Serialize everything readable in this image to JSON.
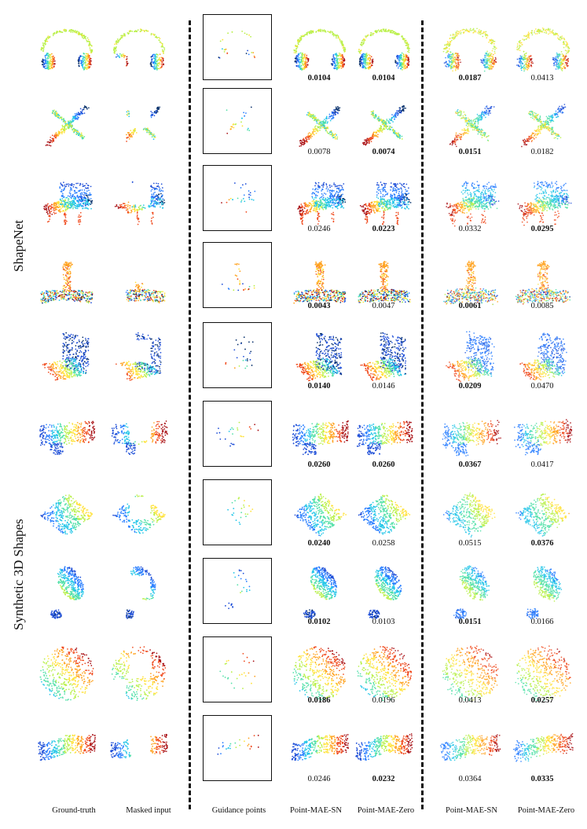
{
  "row_groups": [
    {
      "label": "ShapeNet"
    },
    {
      "label": "Synthetic 3D Shapes"
    }
  ],
  "columns": [
    {
      "label": "Ground-truth"
    },
    {
      "label": "Masked input"
    },
    {
      "label": "Guidance points"
    },
    {
      "label": "Point-MAE-SN"
    },
    {
      "label": "Point-MAE-Zero"
    },
    {
      "label": "Point-MAE-SN"
    },
    {
      "label": "Point-MAE-Zero"
    }
  ],
  "rows": [
    {
      "object": "headphones",
      "group": "ShapeNet",
      "scores": [
        {
          "v": "0.0104",
          "b": true
        },
        {
          "v": "0.0104",
          "b": true
        },
        {
          "v": "0.0187",
          "b": true
        },
        {
          "v": "0.0413",
          "b": false
        }
      ]
    },
    {
      "object": "airplane",
      "group": "ShapeNet",
      "scores": [
        {
          "v": "0.0078",
          "b": false
        },
        {
          "v": "0.0074",
          "b": true
        },
        {
          "v": "0.0151",
          "b": true
        },
        {
          "v": "0.0182",
          "b": false
        }
      ]
    },
    {
      "object": "bench",
      "group": "ShapeNet",
      "scores": [
        {
          "v": "0.0246",
          "b": false
        },
        {
          "v": "0.0223",
          "b": true
        },
        {
          "v": "0.0332",
          "b": false
        },
        {
          "v": "0.0295",
          "b": true
        }
      ]
    },
    {
      "object": "pot-plant",
      "group": "ShapeNet",
      "scores": [
        {
          "v": "0.0043",
          "b": true
        },
        {
          "v": "0.0047",
          "b": false
        },
        {
          "v": "0.0061",
          "b": true
        },
        {
          "v": "0.0085",
          "b": false
        }
      ]
    },
    {
      "object": "folded-planes",
      "group": "ShapeNet",
      "scores": [
        {
          "v": "0.0140",
          "b": true
        },
        {
          "v": "0.0146",
          "b": false
        },
        {
          "v": "0.0209",
          "b": true
        },
        {
          "v": "0.0470",
          "b": false
        }
      ]
    },
    {
      "object": "blob-a",
      "group": "Synthetic 3D Shapes",
      "scores": [
        {
          "v": "0.0260",
          "b": true
        },
        {
          "v": "0.0260",
          "b": true
        },
        {
          "v": "0.0367",
          "b": true
        },
        {
          "v": "0.0417",
          "b": false
        }
      ]
    },
    {
      "object": "diamond",
      "group": "Synthetic 3D Shapes",
      "scores": [
        {
          "v": "0.0240",
          "b": true
        },
        {
          "v": "0.0258",
          "b": false
        },
        {
          "v": "0.0515",
          "b": false
        },
        {
          "v": "0.0376",
          "b": true
        }
      ]
    },
    {
      "object": "ellipsoid-pair",
      "group": "Synthetic 3D Shapes",
      "scores": [
        {
          "v": "0.0102",
          "b": true
        },
        {
          "v": "0.0103",
          "b": false
        },
        {
          "v": "0.0151",
          "b": true
        },
        {
          "v": "0.0166",
          "b": false
        }
      ]
    },
    {
      "object": "sphere",
      "group": "Synthetic 3D Shapes",
      "scores": [
        {
          "v": "0.0186",
          "b": true
        },
        {
          "v": "0.0196",
          "b": false
        },
        {
          "v": "0.0413",
          "b": false
        },
        {
          "v": "0.0257",
          "b": true
        }
      ]
    },
    {
      "object": "blob-b",
      "group": "Synthetic 3D Shapes",
      "scores": [
        {
          "v": "0.0246",
          "b": false
        },
        {
          "v": "0.0232",
          "b": true
        },
        {
          "v": "0.0364",
          "b": false
        },
        {
          "v": "0.0335",
          "b": true
        }
      ]
    }
  ],
  "palette": [
    "#08306b",
    "#1f4fd8",
    "#2a7fff",
    "#25c6e8",
    "#52e0a8",
    "#b9f04a",
    "#ffe23a",
    "#ffa21f",
    "#f04a1d",
    "#a80f14"
  ]
}
